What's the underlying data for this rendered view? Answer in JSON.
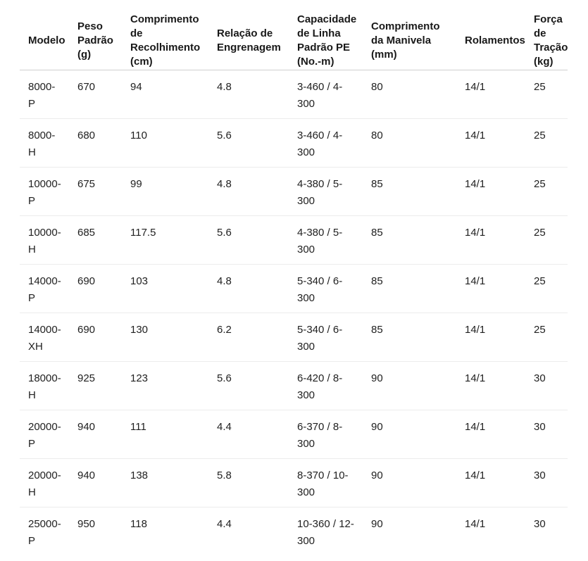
{
  "chart_data": {
    "type": "table",
    "columns": [
      "Modelo",
      "Peso Padrão (g)",
      "Comprimento de Recolhimento (cm)",
      "Relação de Engrenagem",
      "Capacidade de Linha Padrão PE (No.-m)",
      "Comprimento da Manivela (mm)",
      "Rolamentos",
      "Força de Tração (kg)"
    ],
    "rows": [
      [
        "8000-P",
        "670",
        "94",
        "4.8",
        "3-460 / 4-300",
        "80",
        "14/1",
        "25"
      ],
      [
        "8000-H",
        "680",
        "110",
        "5.6",
        "3-460 / 4-300",
        "80",
        "14/1",
        "25"
      ],
      [
        "10000-P",
        "675",
        "99",
        "4.8",
        "4-380 / 5-300",
        "85",
        "14/1",
        "25"
      ],
      [
        "10000-H",
        "685",
        "117.5",
        "5.6",
        "4-380 / 5-300",
        "85",
        "14/1",
        "25"
      ],
      [
        "14000-P",
        "690",
        "103",
        "4.8",
        "5-340 / 6-300",
        "85",
        "14/1",
        "25"
      ],
      [
        "14000-XH",
        "690",
        "130",
        "6.2",
        "5-340 / 6-300",
        "85",
        "14/1",
        "25"
      ],
      [
        "18000-H",
        "925",
        "123",
        "5.6",
        "6-420 / 8-300",
        "90",
        "14/1",
        "30"
      ],
      [
        "20000-P",
        "940",
        "111",
        "4.4",
        "6-370 / 8-300",
        "90",
        "14/1",
        "30"
      ],
      [
        "20000-H",
        "940",
        "138",
        "5.8",
        "8-370 / 10-300",
        "90",
        "14/1",
        "30"
      ],
      [
        "25000-P",
        "950",
        "118",
        "4.4",
        "10-360 / 12-300",
        "90",
        "14/1",
        "30"
      ]
    ],
    "layout": {
      "legend": "none",
      "grid": "horizontal-row-dividers",
      "background_color": "#ffffff",
      "text_color": "#212121",
      "header_text_color": "#191919",
      "header_border_color": "#cfcfcf",
      "row_border_color": "#ececec"
    }
  }
}
